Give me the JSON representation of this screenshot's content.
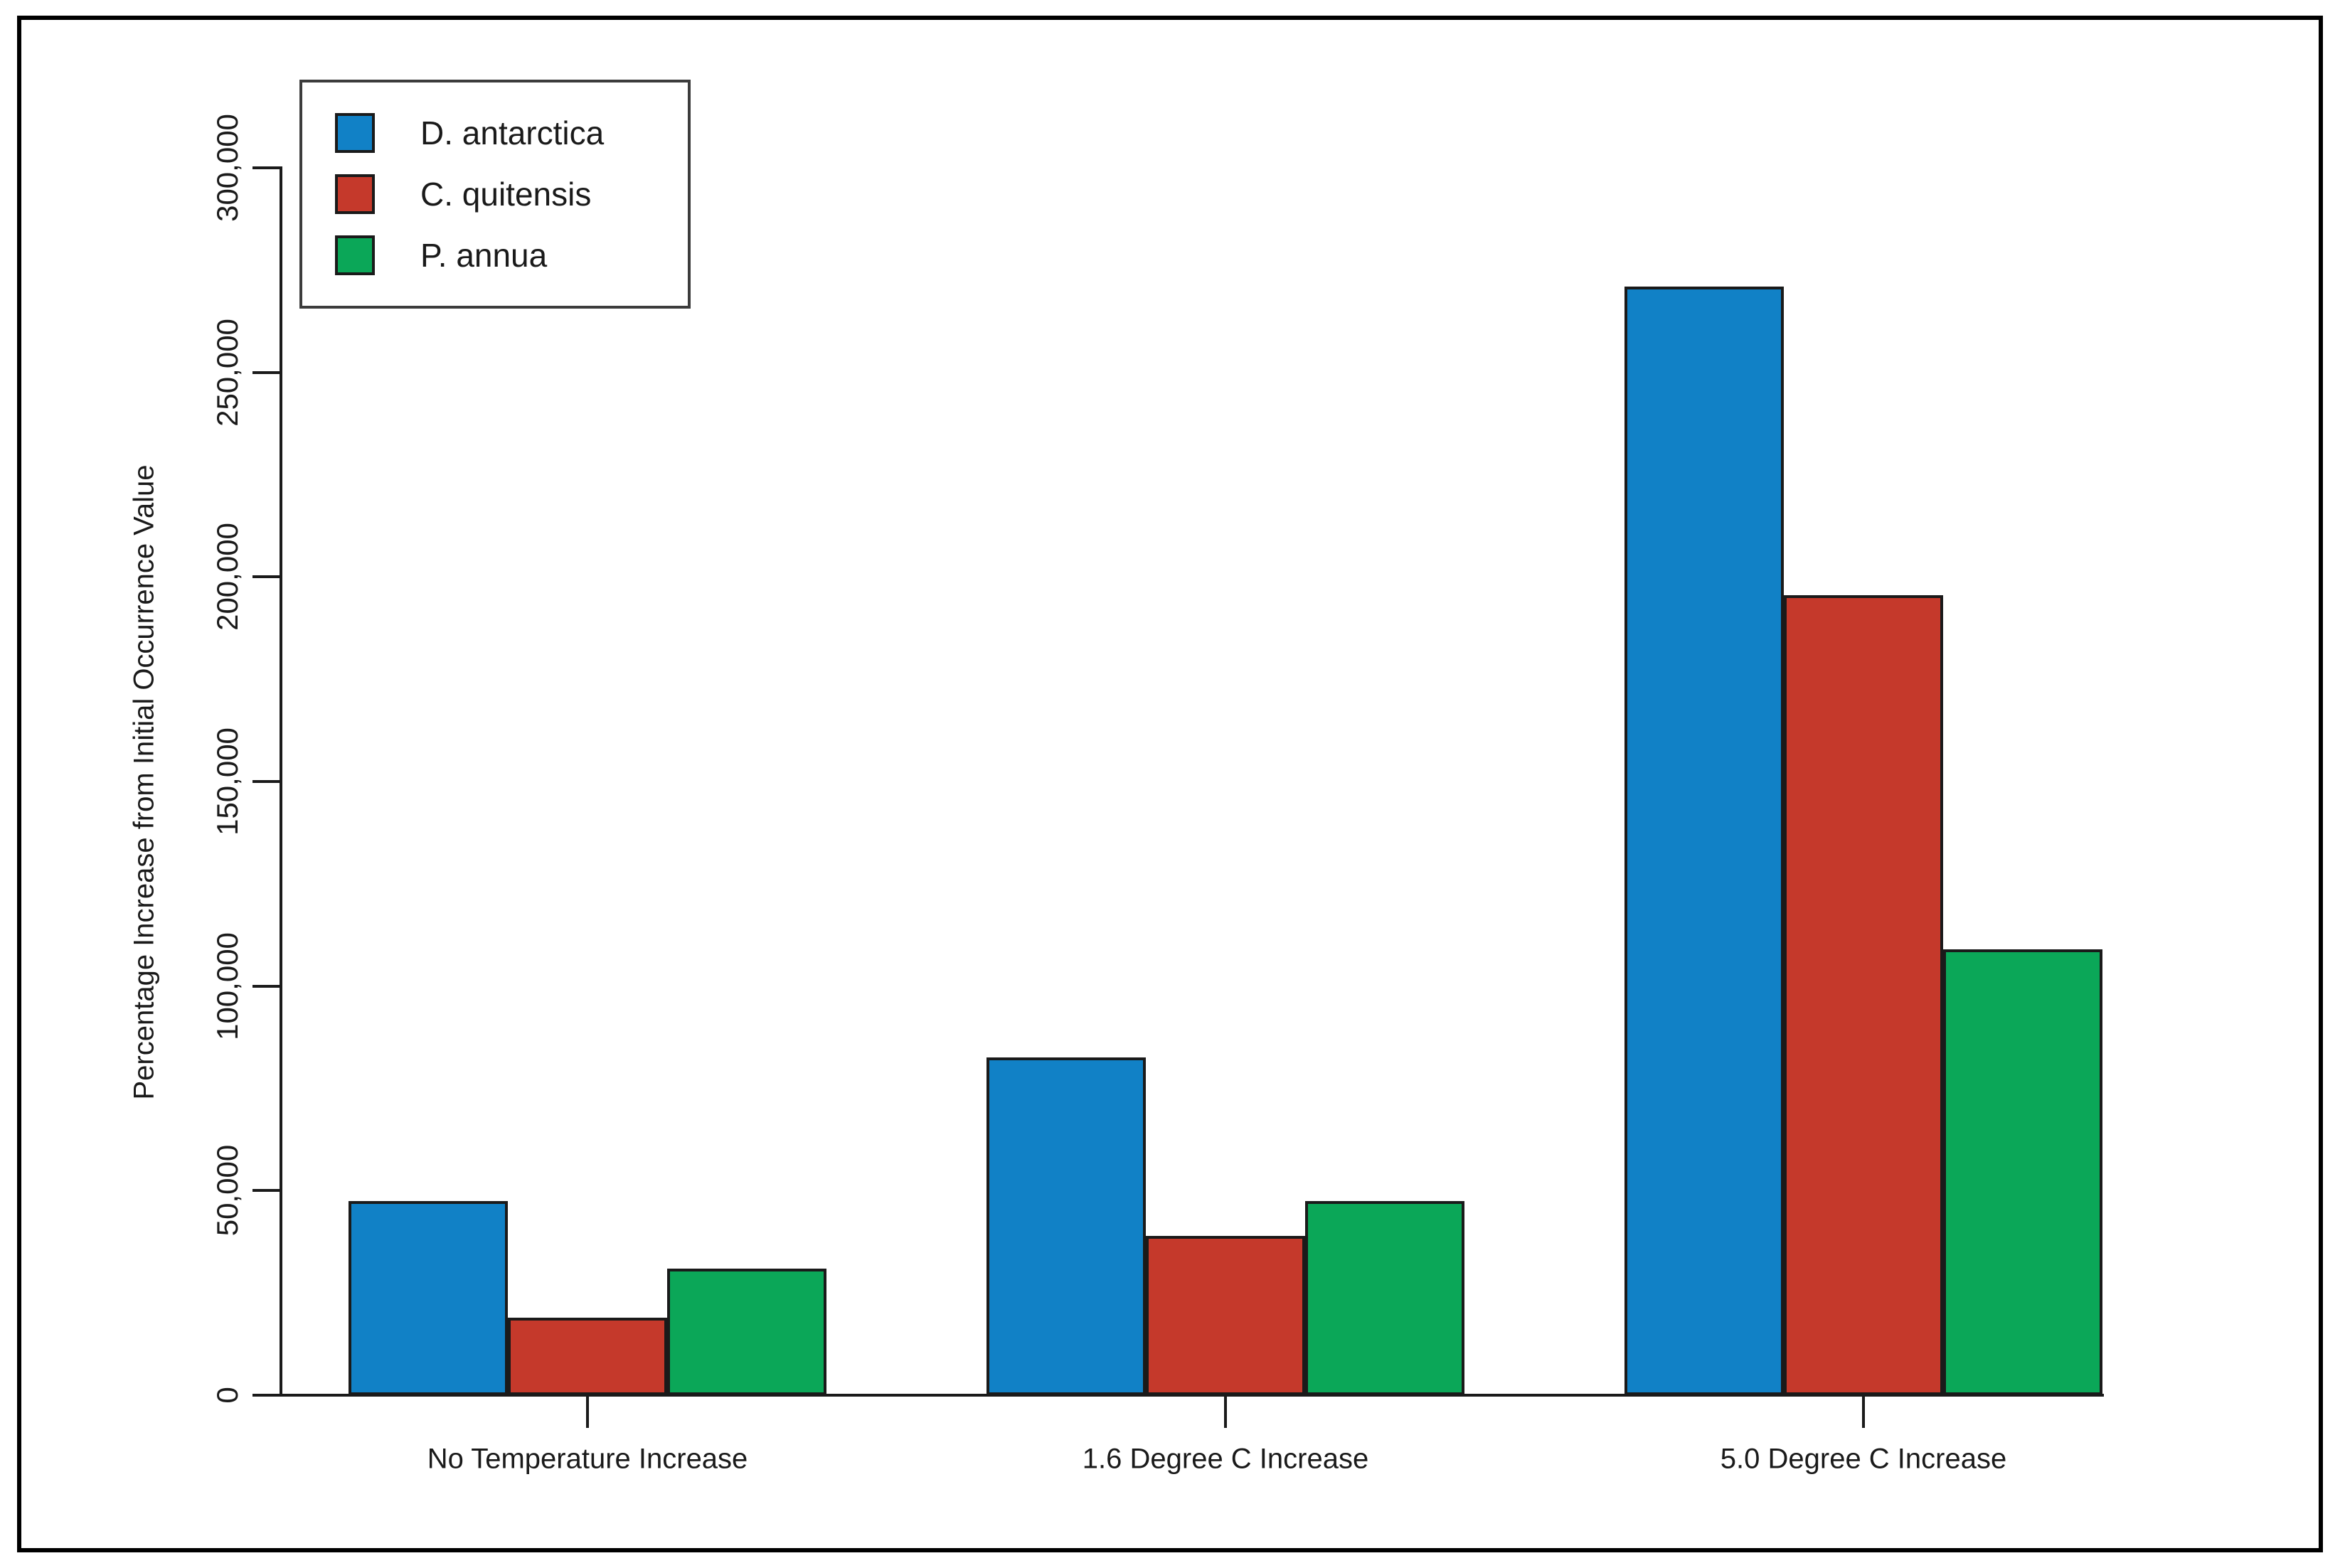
{
  "chart_data": {
    "type": "bar",
    "title": "",
    "categories": [
      "No Temperature Increase",
      "1.6 Degree C Increase",
      "5.0 Degree C Increase"
    ],
    "series": [
      {
        "name": "D. antarctica",
        "color": "#1181C6",
        "values": [
          47500,
          82500,
          271000
        ]
      },
      {
        "name": "C. quitensis",
        "color": "#C5392B",
        "values": [
          19000,
          39000,
          195500
        ]
      },
      {
        "name": "P. annua",
        "color": "#0BA758",
        "values": [
          31000,
          47500,
          109000
        ]
      }
    ],
    "xlabel": "",
    "ylabel": "Percentage Increase from Initial Occurrence Value",
    "ylim": [
      0,
      300000
    ],
    "y_ticks": [
      {
        "value": 0,
        "label": "0"
      },
      {
        "value": 50000,
        "label": "50,000"
      },
      {
        "value": 100000,
        "label": "100,000"
      },
      {
        "value": 150000,
        "label": "150,000"
      },
      {
        "value": 200000,
        "label": "200,000"
      },
      {
        "value": 250000,
        "label": "250,000"
      },
      {
        "value": 300000,
        "label": "300,000"
      }
    ],
    "grid": false,
    "legend_position": "top-left",
    "axis_color": "#1a1a1a",
    "bar_edge_color": "#1a1a1a",
    "figure_border_color": "#000000"
  }
}
